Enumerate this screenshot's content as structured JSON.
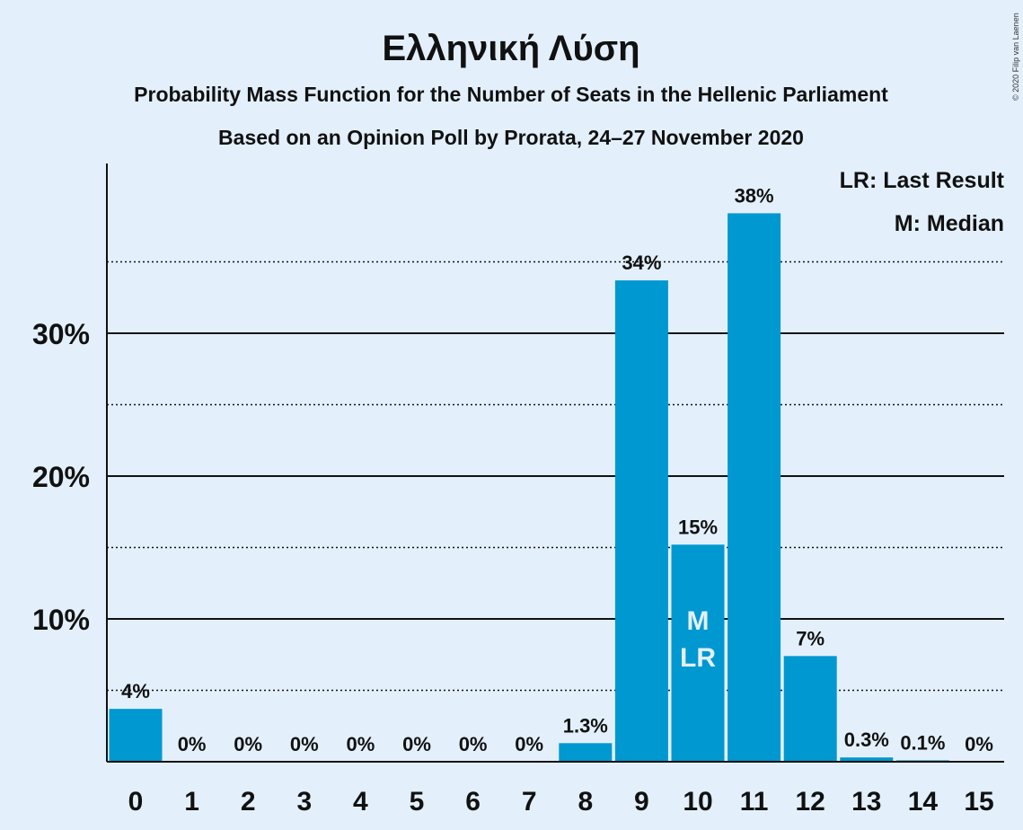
{
  "title": "Ελληνική Λύση",
  "subtitle1": "Probability Mass Function for the Number of Seats in the Hellenic Parliament",
  "subtitle2": "Based on an Opinion Poll by Prorata, 24–27 November 2020",
  "legend": {
    "last_result": "LR: Last Result",
    "median": "M: Median"
  },
  "copyright": "© 2020 Filip van Laenen",
  "colors": {
    "bar": "#0098d0",
    "background": "#e3f0fc",
    "text": "#111111"
  },
  "chart_data": {
    "type": "bar",
    "categories": [
      "0",
      "1",
      "2",
      "3",
      "4",
      "5",
      "6",
      "7",
      "8",
      "9",
      "10",
      "11",
      "12",
      "13",
      "14",
      "15"
    ],
    "values": [
      3.7,
      0,
      0,
      0,
      0,
      0,
      0,
      0,
      1.3,
      33.7,
      15.2,
      38.4,
      7.4,
      0.3,
      0.1,
      0
    ],
    "labels": [
      "4%",
      "0%",
      "0%",
      "0%",
      "0%",
      "0%",
      "0%",
      "0%",
      "1.3%",
      "34%",
      "15%",
      "38%",
      "7%",
      "0.3%",
      "0.1%",
      "0%"
    ],
    "yticks": [
      {
        "value": 10,
        "label": "10%"
      },
      {
        "value": 20,
        "label": "20%"
      },
      {
        "value": 30,
        "label": "30%"
      }
    ],
    "minor_gridlines": [
      5,
      15,
      25,
      35
    ],
    "ylim": [
      0,
      42
    ],
    "median_seat": "10",
    "last_result_seat": "10",
    "median_marker": "M",
    "last_result_marker": "LR"
  }
}
